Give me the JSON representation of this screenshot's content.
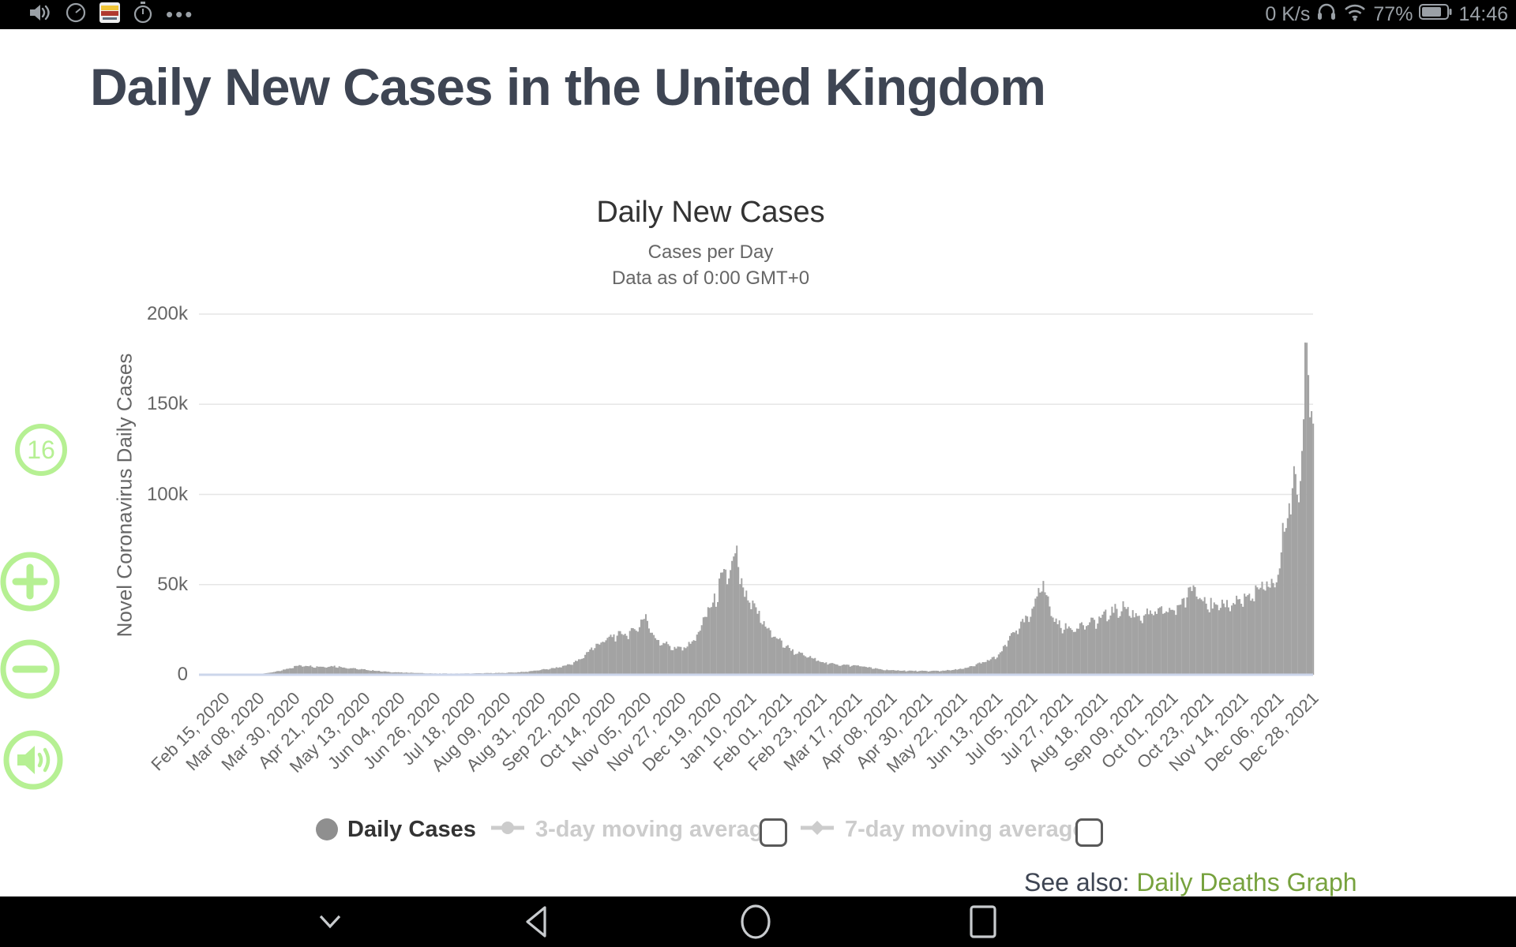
{
  "status_bar": {
    "left_icons": [
      "volume-icon",
      "screen-record-icon",
      "app-icon",
      "timer-icon",
      "more-icon"
    ],
    "network_speed": "0 K/s",
    "battery_percent": "77%",
    "time": "14:46"
  },
  "page": {
    "title": "Daily New Cases in the United Kingdom"
  },
  "overlay": {
    "badge": "16"
  },
  "legend": {
    "items": [
      {
        "label": "Daily Cases",
        "active": true,
        "marker": "circle"
      },
      {
        "label": "3-day moving average",
        "active": false,
        "marker": "line-circle",
        "checkbox": "unchecked"
      },
      {
        "label": "7-day moving average",
        "active": false,
        "marker": "line-diamond",
        "checkbox": "unchecked"
      }
    ]
  },
  "see_also": {
    "label": "See also:",
    "link": "Daily Deaths Graph"
  },
  "colors": {
    "bar": "#a3a3a3",
    "gridline": "#e6e6e6",
    "axis_line": "#ccd6eb",
    "heading": "#3e4553",
    "muted_text": "#666666",
    "legend_inactive": "#cccccc",
    "link_green": "#77a23e",
    "overlay_green": "#b6f093",
    "status_text": "#9aa0a6",
    "nav_icon": "#c8cbce"
  },
  "chart_data": {
    "type": "bar",
    "title": "Daily New Cases",
    "subtitle1": "Cases per Day",
    "subtitle2": "Data as of 0:00 GMT+0",
    "xlabel": "",
    "ylabel": "Novel Coronavirus Daily Cases",
    "ylim": [
      0,
      200000
    ],
    "grid": true,
    "legend_position": "bottom",
    "start_date": "2020-02-15",
    "x_tick_interval_days": 22,
    "x_tick_labels": [
      "Feb 15, 2020",
      "Mar 08, 2020",
      "Mar 30, 2020",
      "Apr 21, 2020",
      "May 13, 2020",
      "Jun 04, 2020",
      "Jun 26, 2020",
      "Jul 18, 2020",
      "Aug 09, 2020",
      "Aug 31, 2020",
      "Sep 22, 2020",
      "Oct 14, 2020",
      "Nov 05, 2020",
      "Nov 27, 2020",
      "Dec 19, 2020",
      "Jan 10, 2021",
      "Feb 01, 2021",
      "Feb 23, 2021",
      "Mar 17, 2021",
      "Apr 08, 2021",
      "Apr 30, 2021",
      "May 22, 2021",
      "Jun 13, 2021",
      "Jul 05, 2021",
      "Jul 27, 2021",
      "Aug 18, 2021",
      "Sep 09, 2021",
      "Oct 01, 2021",
      "Oct 23, 2021",
      "Nov 14, 2021",
      "Dec 06, 2021",
      "Dec 28, 2021"
    ],
    "y_ticks": [
      {
        "value": 0,
        "label": "0"
      },
      {
        "value": 50000,
        "label": "50k"
      },
      {
        "value": 100000,
        "label": "100k"
      },
      {
        "value": 150000,
        "label": "150k"
      },
      {
        "value": 200000,
        "label": "200k"
      }
    ],
    "series": [
      {
        "name": "Daily Cases",
        "anchors": [
          [
            "2020-02-15",
            0
          ],
          [
            "2020-03-01",
            12
          ],
          [
            "2020-03-10",
            160
          ],
          [
            "2020-03-17",
            680
          ],
          [
            "2020-03-24",
            1450
          ],
          [
            "2020-03-31",
            3000
          ],
          [
            "2020-04-07",
            4900
          ],
          [
            "2020-04-12",
            5300
          ],
          [
            "2020-04-18",
            4700
          ],
          [
            "2020-04-24",
            4500
          ],
          [
            "2020-05-01",
            4900
          ],
          [
            "2020-05-08",
            4000
          ],
          [
            "2020-05-15",
            3300
          ],
          [
            "2020-05-22",
            2700
          ],
          [
            "2020-06-01",
            1800
          ],
          [
            "2020-06-10",
            1300
          ],
          [
            "2020-06-20",
            1100
          ],
          [
            "2020-07-01",
            750
          ],
          [
            "2020-07-15",
            650
          ],
          [
            "2020-08-01",
            880
          ],
          [
            "2020-08-15",
            1050
          ],
          [
            "2020-08-28",
            1600
          ],
          [
            "2020-09-07",
            2700
          ],
          [
            "2020-09-17",
            3900
          ],
          [
            "2020-09-25",
            5800
          ],
          [
            "2020-10-02",
            8500
          ],
          [
            "2020-10-08",
            14200
          ],
          [
            "2020-10-14",
            17800
          ],
          [
            "2020-10-21",
            21300
          ],
          [
            "2020-10-28",
            23100
          ],
          [
            "2020-11-04",
            24200
          ],
          [
            "2020-11-12",
            33400
          ],
          [
            "2020-11-17",
            21000
          ],
          [
            "2020-11-24",
            17800
          ],
          [
            "2020-12-01",
            14500
          ],
          [
            "2020-12-08",
            16200
          ],
          [
            "2020-12-15",
            23000
          ],
          [
            "2020-12-20",
            35900
          ],
          [
            "2020-12-24",
            39200
          ],
          [
            "2020-12-29",
            53100
          ],
          [
            "2021-01-01",
            55800
          ],
          [
            "2021-01-05",
            61000
          ],
          [
            "2021-01-08",
            68100
          ],
          [
            "2021-01-12",
            45700
          ],
          [
            "2021-01-16",
            41300
          ],
          [
            "2021-01-22",
            33600
          ],
          [
            "2021-01-29",
            24000
          ],
          [
            "2021-02-05",
            18300
          ],
          [
            "2021-02-12",
            13500
          ],
          [
            "2021-02-19",
            11000
          ],
          [
            "2021-02-26",
            8800
          ],
          [
            "2021-03-05",
            6600
          ],
          [
            "2021-03-12",
            5900
          ],
          [
            "2021-03-19",
            5300
          ],
          [
            "2021-03-26",
            5100
          ],
          [
            "2021-04-02",
            3900
          ],
          [
            "2021-04-09",
            2900
          ],
          [
            "2021-04-16",
            2500
          ],
          [
            "2021-04-23",
            2300
          ],
          [
            "2021-05-01",
            2100
          ],
          [
            "2021-05-08",
            2100
          ],
          [
            "2021-05-15",
            2200
          ],
          [
            "2021-05-22",
            2600
          ],
          [
            "2021-06-01",
            3700
          ],
          [
            "2021-06-08",
            6200
          ],
          [
            "2021-06-15",
            8100
          ],
          [
            "2021-06-22",
            11600
          ],
          [
            "2021-06-29",
            22800
          ],
          [
            "2021-07-06",
            28800
          ],
          [
            "2021-07-12",
            34500
          ],
          [
            "2021-07-17",
            54200
          ],
          [
            "2021-07-21",
            44100
          ],
          [
            "2021-07-27",
            29200
          ],
          [
            "2021-08-03",
            26100
          ],
          [
            "2021-08-10",
            27700
          ],
          [
            "2021-08-17",
            28900
          ],
          [
            "2021-08-24",
            32000
          ],
          [
            "2021-09-01",
            36100
          ],
          [
            "2021-09-08",
            38500
          ],
          [
            "2021-09-15",
            33100
          ],
          [
            "2021-09-22",
            34400
          ],
          [
            "2021-10-01",
            35600
          ],
          [
            "2021-10-08",
            36300
          ],
          [
            "2021-10-15",
            42100
          ],
          [
            "2021-10-21",
            49800
          ],
          [
            "2021-10-28",
            43200
          ],
          [
            "2021-11-04",
            37100
          ],
          [
            "2021-11-11",
            39700
          ],
          [
            "2021-11-18",
            42400
          ],
          [
            "2021-11-25",
            43700
          ],
          [
            "2021-12-02",
            48300
          ],
          [
            "2021-12-08",
            51100
          ],
          [
            "2021-12-13",
            54700
          ],
          [
            "2021-12-16",
            78600
          ],
          [
            "2021-12-18",
            90600
          ],
          [
            "2021-12-21",
            90900
          ],
          [
            "2021-12-23",
            119800
          ],
          [
            "2021-12-25",
            103000
          ],
          [
            "2021-12-28",
            117100
          ],
          [
            "2021-12-30",
            183000
          ],
          [
            "2022-01-01",
            189800
          ],
          [
            "2022-01-02",
            162500
          ],
          [
            "2022-01-04",
            138300
          ]
        ]
      }
    ]
  }
}
